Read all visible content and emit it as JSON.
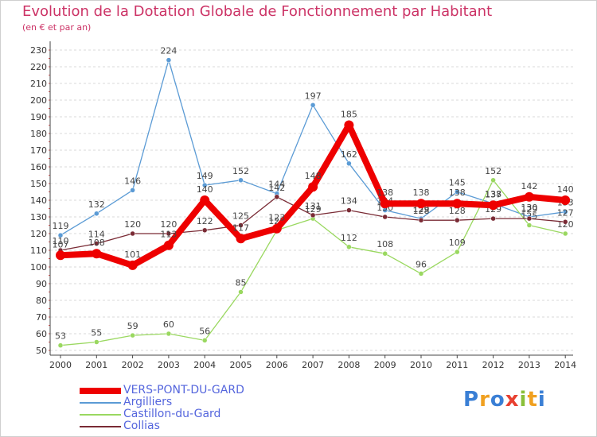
{
  "title": "Evolution de la Dotation Globale de Fonctionnement par Habitant",
  "subtitle": "(en € et par an)",
  "brand": {
    "text": "Proxiti",
    "letters": [
      {
        "ch": "P",
        "color": "#3a7fd5"
      },
      {
        "ch": "r",
        "color": "#f0a020"
      },
      {
        "ch": "o",
        "color": "#3a7fd5"
      },
      {
        "ch": "x",
        "color": "#e84030"
      },
      {
        "ch": "i",
        "color": "#8ac03a"
      },
      {
        "ch": "t",
        "color": "#f0a020"
      },
      {
        "ch": "i",
        "color": "#3a7fd5"
      }
    ]
  },
  "chart_data": {
    "type": "line",
    "title": "Evolution de la Dotation Globale de Fonctionnement par Habitant",
    "subtitle": "(en € et par an)",
    "categories": [
      "2000",
      "2001",
      "2002",
      "2003",
      "2004",
      "2005",
      "2006",
      "2007",
      "2008",
      "2009",
      "2010",
      "2011",
      "2012",
      "2013",
      "2014"
    ],
    "ylim": [
      50,
      230
    ],
    "yticks": [
      50,
      60,
      70,
      80,
      90,
      100,
      110,
      120,
      130,
      140,
      150,
      160,
      170,
      180,
      190,
      200,
      210,
      220,
      230
    ],
    "grid": "dashed-horizontal",
    "legend_position": "bottom-left",
    "series": [
      {
        "name": "VERS-PONT-DU-GARD",
        "color": "#ee0000",
        "values": [
          107,
          108,
          101,
          113,
          140,
          117,
          123,
          148,
          185,
          138,
          138,
          138,
          137,
          142,
          140
        ],
        "labels": [
          "107",
          "108",
          "101",
          "113",
          "140",
          "117",
          "123",
          "148",
          "185",
          "138",
          "138",
          "138",
          "137",
          "142",
          "140"
        ]
      },
      {
        "name": "Argilliers",
        "color": "#5b9bd5",
        "values": [
          119,
          132,
          146,
          224,
          149,
          152,
          144,
          197,
          162,
          134,
          129,
          145,
          138,
          130,
          133
        ],
        "labels": [
          "119",
          "132",
          "146",
          "224",
          "149",
          "152",
          "144",
          "197",
          "162",
          "134",
          "129",
          "145",
          "138",
          "130",
          "133"
        ]
      },
      {
        "name": "Castillon-du-Gard",
        "color": "#9ad860",
        "values": [
          53,
          55,
          59,
          60,
          56,
          85,
          122,
          129,
          112,
          108,
          96,
          109,
          152,
          125,
          120
        ],
        "labels": [
          "53",
          "55",
          "59",
          "60",
          "56",
          "85",
          "122",
          "129",
          "112",
          "108",
          "96",
          "109",
          "152",
          "125",
          "120"
        ]
      },
      {
        "name": "Collias",
        "color": "#7a2b35",
        "values": [
          110,
          114,
          120,
          120,
          122,
          125,
          142,
          131,
          134,
          130,
          128,
          128,
          129,
          129,
          127
        ],
        "labels": [
          "110",
          "114",
          "120",
          "120",
          "122",
          "125",
          "142",
          "131",
          "134",
          "130",
          "128",
          "128",
          "129",
          "129",
          "127"
        ]
      }
    ]
  }
}
